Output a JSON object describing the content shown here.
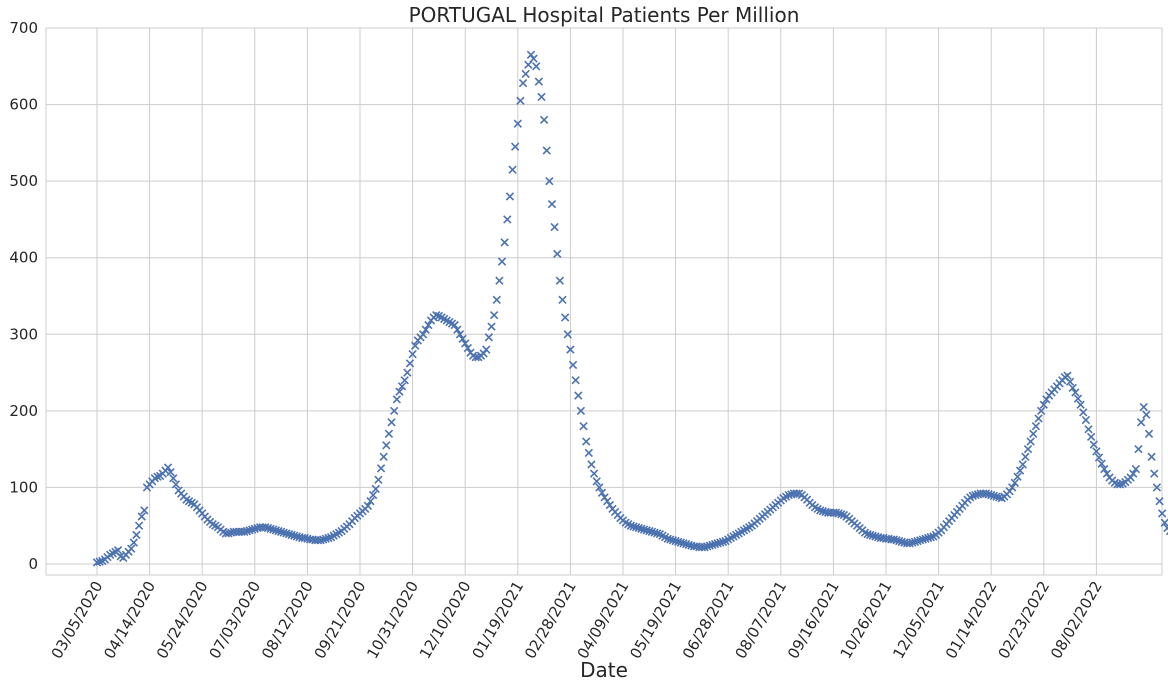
{
  "chart_data": {
    "type": "scatter",
    "title": "PORTUGAL   Hospital Patients Per Million",
    "xlabel": "Date",
    "ylabel": "",
    "ylim": [
      -10,
      700
    ],
    "yticks": [
      0,
      100,
      200,
      300,
      400,
      500,
      600,
      700
    ],
    "xtick_labels": [
      "03/05/2020",
      "04/14/2020",
      "05/24/2020",
      "07/03/2020",
      "08/12/2020",
      "09/21/2020",
      "10/31/2020",
      "12/10/2020",
      "01/19/2021",
      "02/28/2021",
      "04/09/2021",
      "05/19/2021",
      "06/28/2021",
      "08/07/2021",
      "09/16/2021",
      "10/26/2021",
      "12/05/2021",
      "01/14/2022",
      "02/23/2022",
      "08/02/2022"
    ],
    "grid": true,
    "legend": "none",
    "marker": "x",
    "series_color": "#4c72b0",
    "x_interval_days": 40,
    "points_per_interval": 20,
    "series": [
      {
        "values": [
          2,
          3,
          4,
          6,
          9,
          12,
          14,
          16,
          18,
          10,
          8,
          12,
          16,
          20,
          28,
          38,
          50,
          62,
          70,
          100,
          104,
          108,
          112,
          114,
          115,
          118,
          122,
          126,
          120,
          112,
          104,
          96,
          92,
          88,
          84,
          82,
          80,
          78,
          74,
          70,
          66,
          62,
          58,
          55,
          52,
          50,
          48,
          45,
          42,
          40,
          40,
          41,
          42,
          42,
          42,
          42,
          42,
          43,
          44,
          45,
          46,
          47,
          48,
          48,
          48,
          47,
          46,
          45,
          44,
          43,
          42,
          41,
          40,
          39,
          38,
          37,
          36,
          35,
          34,
          34,
          33,
          32,
          32,
          31,
          31,
          31,
          32,
          33,
          34,
          35,
          37,
          39,
          41,
          43,
          46,
          49,
          52,
          56,
          60,
          63,
          66,
          69,
          72,
          76,
          82,
          90,
          98,
          110,
          125,
          140,
          155,
          170,
          185,
          200,
          215,
          225,
          232,
          240,
          250,
          262,
          274,
          285,
          292,
          296,
          300,
          306,
          312,
          318,
          322,
          325,
          324,
          322,
          320,
          318,
          316,
          314,
          312,
          306,
          300,
          294,
          288,
          282,
          276,
          272,
          270,
          270,
          272,
          275,
          280,
          296,
          310,
          325,
          345,
          370,
          395,
          420,
          450,
          480,
          515,
          545,
          575,
          605,
          628,
          640,
          652,
          665,
          660,
          650,
          630,
          610,
          580,
          540,
          500,
          470,
          440,
          405,
          370,
          345,
          322,
          300,
          280,
          260,
          240,
          220,
          200,
          180,
          160,
          145,
          130,
          118,
          108,
          100,
          93,
          87,
          82,
          77,
          72,
          68,
          64,
          60,
          57,
          54,
          52,
          50,
          49,
          48,
          47,
          46,
          45,
          44,
          43,
          42,
          41,
          40,
          39,
          37,
          35,
          33,
          32,
          31,
          30,
          29,
          28,
          27,
          26,
          25,
          24,
          23,
          23,
          22,
          22,
          22,
          23,
          24,
          25,
          26,
          27,
          28,
          29,
          30,
          32,
          34,
          36,
          38,
          40,
          42,
          44,
          46,
          48,
          50,
          53,
          56,
          59,
          62,
          65,
          68,
          71,
          74,
          77,
          80,
          83,
          86,
          88,
          90,
          91,
          92,
          92,
          92,
          90,
          87,
          84,
          80,
          77,
          74,
          72,
          70,
          69,
          68,
          67,
          67,
          67,
          67,
          66,
          65,
          64,
          62,
          59,
          56,
          53,
          50,
          47,
          44,
          41,
          39,
          38,
          37,
          36,
          35,
          34,
          34,
          33,
          33,
          32,
          32,
          31,
          30,
          29,
          28,
          27,
          27,
          28,
          29,
          30,
          31,
          32,
          33,
          34,
          35,
          36,
          38,
          41,
          44,
          48,
          52,
          56,
          60,
          64,
          68,
          72,
          76,
          80,
          84,
          87,
          89,
          90,
          91,
          92,
          92,
          92,
          91,
          90,
          89,
          88,
          87,
          86,
          88,
          91,
          95,
          100,
          106,
          114,
          122,
          130,
          140,
          150,
          160,
          170,
          180,
          190,
          200,
          208,
          215,
          220,
          224,
          228,
          232,
          236,
          240,
          244,
          246,
          238,
          230,
          224,
          216,
          208,
          198,
          188,
          176,
          166,
          156,
          147,
          139,
          131,
          124,
          118,
          113,
          109,
          106,
          104,
          104,
          105,
          107,
          110,
          113,
          118,
          124,
          150,
          185,
          205,
          195,
          170,
          140,
          118,
          100,
          82,
          66,
          54,
          47,
          43,
          41,
          39,
          38
        ]
      }
    ]
  }
}
